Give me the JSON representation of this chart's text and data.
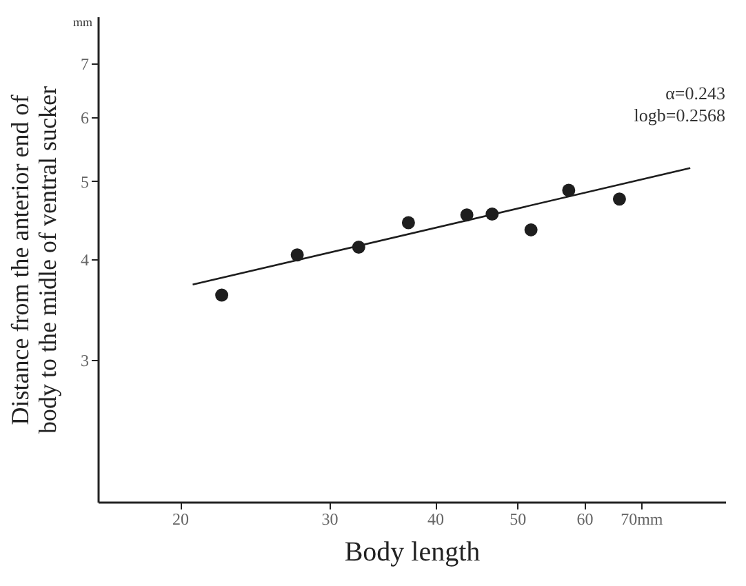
{
  "chart_data": {
    "type": "scatter",
    "xlabel": "Body length",
    "ylabel": "Distance from the anterior end of\nbody to the midle of ventral sucker",
    "log": "xy",
    "grid": false,
    "xlim": [
      16,
      88
    ],
    "xticks": [
      20,
      30,
      40,
      50,
      60,
      {
        "value": 70,
        "label": "70mm"
      }
    ],
    "ylim": [
      2,
      8
    ],
    "yticks": [
      3,
      4,
      5,
      6,
      7
    ],
    "annotations": [
      "mm",
      "α=0.243",
      "logb=0.2568"
    ],
    "series": [
      {
        "marker": "circle",
        "color": "#1e1e1e",
        "x": [
          22.4,
          27.5,
          32.5,
          37.2,
          43.6,
          46.7,
          51.9,
          57.5,
          66.0
        ],
        "values": [
          3.61,
          4.05,
          4.14,
          4.44,
          4.54,
          4.55,
          4.35,
          4.87,
          4.75
        ]
      },
      {
        "type": "line",
        "color": "#1e1e1e",
        "x": [
          20.7,
          80.0
        ],
        "values": [
          3.72,
          5.19
        ]
      }
    ]
  }
}
